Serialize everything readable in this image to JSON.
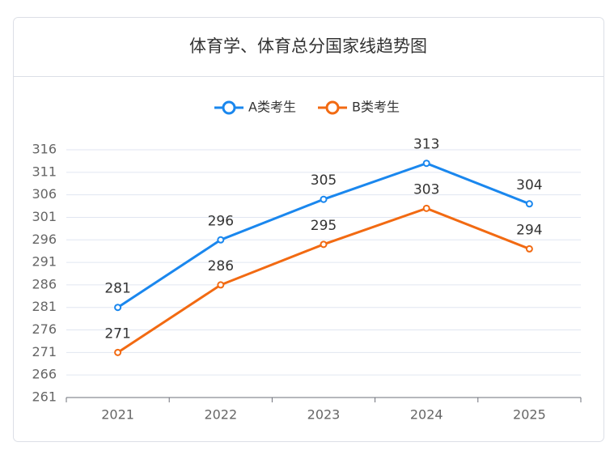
{
  "chart_data": {
    "type": "line",
    "title": "体育学、体育总分国家线趋势图",
    "categories": [
      "2021",
      "2022",
      "2023",
      "2024",
      "2025"
    ],
    "series": [
      {
        "name": "A类考生",
        "color": "#1a87ee",
        "values": [
          281,
          296,
          305,
          313,
          304
        ]
      },
      {
        "name": "B类考生",
        "color": "#f26a12",
        "values": [
          271,
          286,
          295,
          303,
          294
        ]
      }
    ],
    "ylim": [
      261,
      316
    ],
    "yticks": [
      261,
      266,
      271,
      276,
      281,
      286,
      291,
      296,
      301,
      306,
      311,
      316
    ],
    "grid": true,
    "legend": "top"
  }
}
